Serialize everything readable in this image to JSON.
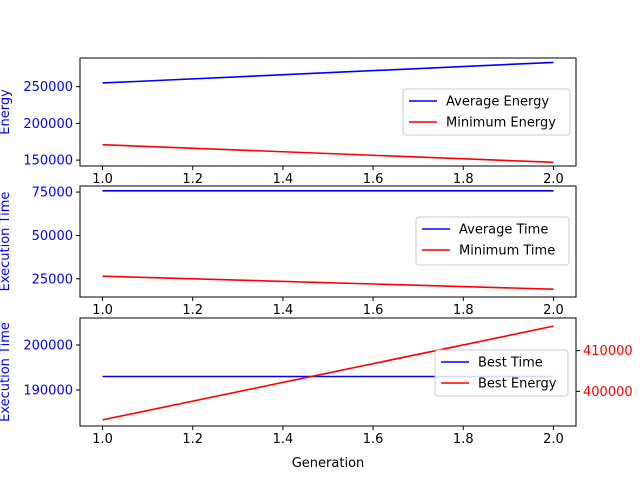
{
  "chart_data": [
    {
      "type": "line",
      "ylabel": "Energy",
      "ylabel_color": "#0000ff",
      "x": [
        1.0,
        2.0
      ],
      "xlim": [
        0.95,
        2.05
      ],
      "ylim": [
        142000,
        289000
      ],
      "x_ticks": [
        "1.0",
        "1.2",
        "1.4",
        "1.6",
        "1.8",
        "2.0"
      ],
      "y_ticks": [
        "150000",
        "200000",
        "250000"
      ],
      "y_tick_values": [
        150000,
        200000,
        250000
      ],
      "legend_position": "center-right",
      "series": [
        {
          "name": "Average Energy",
          "color": "#0000ff",
          "values": [
            255000,
            283000
          ]
        },
        {
          "name": "Minimum Energy",
          "color": "#ff0000",
          "values": [
            171000,
            147000
          ]
        }
      ]
    },
    {
      "type": "line",
      "ylabel": "Execution Time",
      "ylabel_color": "#0000ff",
      "x": [
        1.0,
        2.0
      ],
      "xlim": [
        0.95,
        2.05
      ],
      "ylim": [
        14500,
        78500
      ],
      "x_ticks": [
        "1.0",
        "1.2",
        "1.4",
        "1.6",
        "1.8",
        "2.0"
      ],
      "y_ticks": [
        "25000",
        "50000",
        "75000"
      ],
      "y_tick_values": [
        25000,
        50000,
        75000
      ],
      "legend_position": "center-right",
      "series": [
        {
          "name": "Average Time",
          "color": "#0000ff",
          "values": [
            75700,
            75700
          ]
        },
        {
          "name": "Minimum Time",
          "color": "#ff0000",
          "values": [
            26500,
            19000
          ]
        }
      ]
    },
    {
      "type": "line",
      "ylabel": "Execution Time",
      "ylabel_color": "#0000ff",
      "x": [
        1.0,
        2.0
      ],
      "xlabel": "Generation",
      "xlim": [
        0.95,
        2.05
      ],
      "ylim": [
        182000,
        206000
      ],
      "ylim_right": [
        391500,
        418000
      ],
      "x_ticks": [
        "1.0",
        "1.2",
        "1.4",
        "1.6",
        "1.8",
        "2.0"
      ],
      "y_ticks": [
        "190000",
        "200000"
      ],
      "y_tick_values": [
        190000,
        200000
      ],
      "y_ticks_right": [
        "400000",
        "410000"
      ],
      "y_tick_values_right": [
        400000,
        410000
      ],
      "right_tick_color": "#ff0000",
      "legend_position": "center-right",
      "series": [
        {
          "name": "Best Time",
          "color": "#0000ff",
          "values": [
            193000,
            193000
          ],
          "axis": "left"
        },
        {
          "name": "Best Energy",
          "color": "#ff0000",
          "values": [
            393000,
            416000
          ],
          "axis": "right"
        }
      ]
    }
  ]
}
